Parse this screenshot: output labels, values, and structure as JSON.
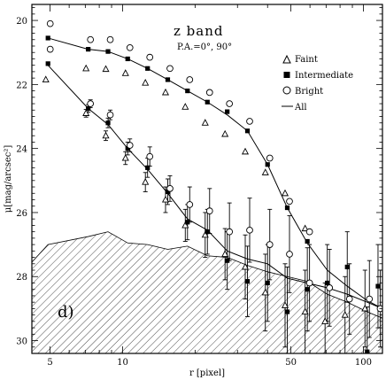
{
  "chart_data": {
    "type": "scatter",
    "title": "z band",
    "subtitle": "P.A.=0°, 90°",
    "panel_label": "d)",
    "xlabel": "r [pixel]",
    "ylabel": "μ[mag/arcsec²]",
    "x_scale": "log",
    "xlim": [
      4.2,
      120
    ],
    "ylim": [
      30.4,
      19.5
    ],
    "y_inverted": true,
    "x_ticks": [
      5,
      10,
      50,
      100
    ],
    "y_ticks": [
      20,
      22,
      24,
      26,
      28,
      30
    ],
    "legend": {
      "placement": "top-right",
      "entries": [
        {
          "label": "Faint",
          "marker": "triangle-open"
        },
        {
          "label": "Intermediate",
          "marker": "square-filled"
        },
        {
          "label": "Bright",
          "marker": "circle-open"
        },
        {
          "label": "All",
          "marker": "line"
        }
      ]
    },
    "series": [
      {
        "name": "Faint",
        "profile": "upper",
        "marker": "triangle-open",
        "points": [
          {
            "x": 4.9,
            "y": 21.85
          },
          {
            "x": 7.2,
            "y": 21.5
          },
          {
            "x": 8.7,
            "y": 21.52
          },
          {
            "x": 10.5,
            "y": 21.65
          },
          {
            "x": 12.7,
            "y": 21.95
          },
          {
            "x": 15.4,
            "y": 22.25
          },
          {
            "x": 18.6,
            "y": 22.7
          },
          {
            "x": 22.5,
            "y": 23.2
          },
          {
            "x": 27.2,
            "y": 23.55
          },
          {
            "x": 33,
            "y": 24.1
          },
          {
            "x": 40,
            "y": 24.75
          },
          {
            "x": 48.3,
            "y": 25.4
          },
          {
            "x": 58.5,
            "y": 26.5
          }
        ]
      },
      {
        "name": "Faint",
        "profile": "lower",
        "marker": "triangle-open",
        "points": [
          {
            "x": 7.2,
            "y": 22.9,
            "err": 0.12
          },
          {
            "x": 8.7,
            "y": 23.6,
            "err": 0.15
          },
          {
            "x": 10.5,
            "y": 24.3,
            "err": 0.2
          },
          {
            "x": 12.7,
            "y": 25.05,
            "err": 0.3
          },
          {
            "x": 15.4,
            "y": 25.6,
            "err": 0.4
          },
          {
            "x": 18.6,
            "y": 26.4,
            "err": 0.5
          },
          {
            "x": 22.5,
            "y": 26.7,
            "err": 0.7
          },
          {
            "x": 27.2,
            "y": 27.3,
            "err": 0.8
          },
          {
            "x": 33,
            "y": 27.7,
            "err": 1.0
          },
          {
            "x": 40,
            "y": 28.5,
            "err": 1.2
          },
          {
            "x": 48.3,
            "y": 28.9,
            "err": 1.3
          },
          {
            "x": 58.5,
            "y": 29.1,
            "err": 1.3
          },
          {
            "x": 70.8,
            "y": 29.4,
            "err": 1.2
          },
          {
            "x": 85.7,
            "y": 29.2,
            "err": 1.2
          },
          {
            "x": 103.7,
            "y": 29.0,
            "err": 1.2
          }
        ]
      },
      {
        "name": "Intermediate",
        "profile": "upper",
        "marker": "square-filled",
        "points": [
          {
            "x": 4.9,
            "y": 20.55
          },
          {
            "x": 7.2,
            "y": 20.9
          },
          {
            "x": 8.7,
            "y": 20.97
          },
          {
            "x": 10.5,
            "y": 21.2
          },
          {
            "x": 12.7,
            "y": 21.5
          },
          {
            "x": 15.4,
            "y": 21.85
          },
          {
            "x": 18.6,
            "y": 22.2
          },
          {
            "x": 22.5,
            "y": 22.55
          },
          {
            "x": 27.2,
            "y": 22.85
          },
          {
            "x": 33,
            "y": 23.45
          },
          {
            "x": 40,
            "y": 24.5
          },
          {
            "x": 48.3,
            "y": 25.85
          },
          {
            "x": 58.5,
            "y": 26.9
          }
        ]
      },
      {
        "name": "Intermediate",
        "profile": "lower",
        "marker": "square-filled",
        "points": [
          {
            "x": 4.9,
            "y": 21.35
          },
          {
            "x": 7.2,
            "y": 22.75,
            "err": 0.12
          },
          {
            "x": 8.7,
            "y": 23.2,
            "err": 0.15
          },
          {
            "x": 10.5,
            "y": 24.0,
            "err": 0.2
          },
          {
            "x": 12.7,
            "y": 24.6,
            "err": 0.3
          },
          {
            "x": 15.4,
            "y": 25.35,
            "err": 0.4
          },
          {
            "x": 18.6,
            "y": 26.3,
            "err": 0.55
          },
          {
            "x": 22.5,
            "y": 26.6,
            "err": 0.7
          },
          {
            "x": 27.2,
            "y": 27.5,
            "err": 0.9
          },
          {
            "x": 33,
            "y": 28.15,
            "err": 1.1
          },
          {
            "x": 40,
            "y": 28.2,
            "err": 1.2
          },
          {
            "x": 48.3,
            "y": 29.1,
            "err": 1.4
          },
          {
            "x": 58.5,
            "y": 28.4,
            "err": 1.3
          },
          {
            "x": 70.8,
            "y": 28.2,
            "err": 1.2
          },
          {
            "x": 85.7,
            "y": 27.7,
            "err": 1.1
          },
          {
            "x": 103.7,
            "y": 30.35,
            "err": 1.4
          },
          {
            "x": 115,
            "y": 28.3,
            "err": 1.3
          }
        ]
      },
      {
        "name": "Bright",
        "profile": "upper",
        "marker": "circle-open",
        "points": [
          {
            "x": 4.9,
            "y": 20.1
          },
          {
            "x": 7.2,
            "y": 20.6
          },
          {
            "x": 8.7,
            "y": 20.6
          },
          {
            "x": 10.5,
            "y": 20.85
          },
          {
            "x": 12.7,
            "y": 21.15
          },
          {
            "x": 15.4,
            "y": 21.5
          },
          {
            "x": 18.6,
            "y": 21.85
          },
          {
            "x": 22.5,
            "y": 22.25
          },
          {
            "x": 27.2,
            "y": 22.6
          },
          {
            "x": 33,
            "y": 23.15
          },
          {
            "x": 40,
            "y": 24.3
          },
          {
            "x": 48.3,
            "y": 25.65
          },
          {
            "x": 58.5,
            "y": 26.6
          }
        ]
      },
      {
        "name": "Bright",
        "profile": "lower",
        "marker": "circle-open",
        "points": [
          {
            "x": 4.9,
            "y": 20.9
          },
          {
            "x": 7.2,
            "y": 22.6,
            "err": 0.12
          },
          {
            "x": 8.7,
            "y": 22.95,
            "err": 0.15
          },
          {
            "x": 10.5,
            "y": 23.9,
            "err": 0.2
          },
          {
            "x": 12.7,
            "y": 24.25,
            "err": 0.3
          },
          {
            "x": 15.4,
            "y": 25.25,
            "err": 0.4
          },
          {
            "x": 18.6,
            "y": 25.75,
            "err": 0.55
          },
          {
            "x": 22.5,
            "y": 25.95,
            "err": 0.7
          },
          {
            "x": 27.2,
            "y": 26.6,
            "err": 0.9
          },
          {
            "x": 33,
            "y": 26.55,
            "err": 1.0
          },
          {
            "x": 40,
            "y": 27.0,
            "err": 1.1
          },
          {
            "x": 48.3,
            "y": 27.3,
            "err": 1.2
          },
          {
            "x": 58.5,
            "y": 28.2,
            "err": 1.2
          },
          {
            "x": 70.8,
            "y": 28.35,
            "err": 1.2
          },
          {
            "x": 85.7,
            "y": 28.7,
            "err": 1.1
          },
          {
            "x": 103.7,
            "y": 28.7,
            "err": 1.2
          },
          {
            "x": 115,
            "y": 29.0,
            "err": 1.2
          }
        ]
      },
      {
        "name": "All",
        "profile": "upper",
        "marker": "line",
        "points": [
          {
            "x": 4.9,
            "y": 20.55
          },
          {
            "x": 7.2,
            "y": 20.9
          },
          {
            "x": 8.7,
            "y": 20.97
          },
          {
            "x": 10.5,
            "y": 21.2
          },
          {
            "x": 12.7,
            "y": 21.5
          },
          {
            "x": 15.4,
            "y": 21.85
          },
          {
            "x": 18.6,
            "y": 22.2
          },
          {
            "x": 22.5,
            "y": 22.55
          },
          {
            "x": 27.2,
            "y": 22.95
          },
          {
            "x": 33,
            "y": 23.45
          },
          {
            "x": 40,
            "y": 24.5
          },
          {
            "x": 48.3,
            "y": 25.85
          },
          {
            "x": 58.5,
            "y": 26.95
          },
          {
            "x": 70.8,
            "y": 27.8
          },
          {
            "x": 85.7,
            "y": 28.3
          },
          {
            "x": 103.7,
            "y": 28.75
          },
          {
            "x": 120,
            "y": 29.0
          }
        ]
      },
      {
        "name": "All",
        "profile": "lower",
        "marker": "line",
        "points": [
          {
            "x": 4.9,
            "y": 21.4
          },
          {
            "x": 7.2,
            "y": 22.75
          },
          {
            "x": 8.7,
            "y": 23.25
          },
          {
            "x": 10.5,
            "y": 24.0
          },
          {
            "x": 12.7,
            "y": 24.65
          },
          {
            "x": 15.4,
            "y": 25.4
          },
          {
            "x": 18.6,
            "y": 26.2
          },
          {
            "x": 22.5,
            "y": 26.55
          },
          {
            "x": 27.2,
            "y": 27.2
          },
          {
            "x": 33,
            "y": 27.45
          },
          {
            "x": 40,
            "y": 27.6
          },
          {
            "x": 48.3,
            "y": 28.05
          },
          {
            "x": 58.5,
            "y": 28.2
          },
          {
            "x": 70.8,
            "y": 28.35
          },
          {
            "x": 85.7,
            "y": 28.55
          },
          {
            "x": 103.7,
            "y": 28.8
          },
          {
            "x": 120,
            "y": 29.0
          }
        ]
      }
    ],
    "shaded_region": {
      "style": "hatched",
      "upper_boundary": [
        {
          "x": 4.2,
          "y": 27.55
        },
        {
          "x": 4.9,
          "y": 27.0
        },
        {
          "x": 7.2,
          "y": 26.75
        },
        {
          "x": 8.7,
          "y": 26.6
        },
        {
          "x": 10.5,
          "y": 26.95
        },
        {
          "x": 12.7,
          "y": 27.0
        },
        {
          "x": 15.4,
          "y": 27.15
        },
        {
          "x": 18.6,
          "y": 27.05
        },
        {
          "x": 22.5,
          "y": 27.35
        },
        {
          "x": 27.2,
          "y": 27.4
        },
        {
          "x": 33,
          "y": 27.65
        },
        {
          "x": 40,
          "y": 27.85
        },
        {
          "x": 48.3,
          "y": 28.0
        },
        {
          "x": 58.5,
          "y": 28.15
        },
        {
          "x": 70.8,
          "y": 28.55
        },
        {
          "x": 85.7,
          "y": 28.8
        },
        {
          "x": 103.7,
          "y": 29.1
        },
        {
          "x": 120,
          "y": 29.3
        }
      ]
    }
  }
}
